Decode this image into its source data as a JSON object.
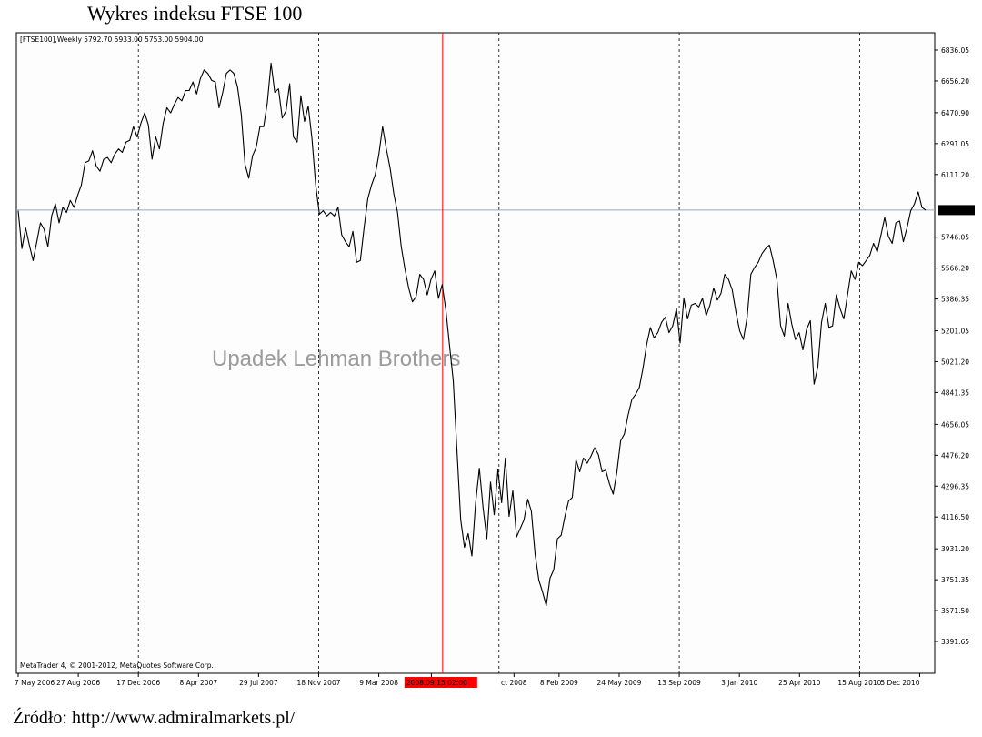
{
  "page_title": "Wykres indeksu FTSE 100",
  "source_text": "Źródło: http://www.admiralmarkets.pl/",
  "chart_data": {
    "type": "line",
    "header": "[FTSE100],Weekly  5792.70 5933.00 5753.00 5904.00",
    "copyright": "MetaTrader 4, © 2001-2012, MetaQuotes Software Corp.",
    "annotation": "Upadek Lehman Brothers",
    "highlight_label": "2008.09.15 02:00",
    "current_value_label": "5904.00",
    "current_value": 5904.0,
    "colors": {
      "line": "#000000",
      "highlight": "#ff0000",
      "current_line": "#8ea9c3",
      "label_bg": "#000000",
      "highlight_bg": "#ff0000"
    },
    "ylim": [
      3391.65,
      6836.05
    ],
    "y_ticks": [
      6836.05,
      6656.2,
      6470.9,
      6291.05,
      6111.2,
      5746.05,
      5566.2,
      5386.35,
      5201.05,
      5021.2,
      4841.35,
      4656.05,
      4476.2,
      4296.35,
      4116.5,
      3931.2,
      3751.35,
      3571.5,
      3391.65
    ],
    "y_tick_labels": [
      "6836.05",
      "6656.20",
      "6470.90",
      "6291.05",
      "6111.20",
      "5746.05",
      "5566.20",
      "5386.35",
      "5201.05",
      "5021.20",
      "4841.35",
      "4656.05",
      "4476.20",
      "4296.35",
      "4116.50",
      "3931.20",
      "3751.35",
      "3571.50",
      "3391.65"
    ],
    "x_tick_labels": [
      "7 May 2006",
      "27 Aug 2006",
      "17 Dec 2006",
      "8 Apr 2007",
      "29 Jul 2007",
      "18 Nov 2007",
      "9 Mar 2008",
      "2",
      "ct 2008",
      "8 Feb 2009",
      "24 May 2009",
      "13 Sep 2009",
      "3 Jan 2010",
      "25 Apr 2010",
      "15 Aug 2010",
      "5 Dec 2010"
    ],
    "x_tick_weeks": [
      0,
      16,
      32,
      48,
      64,
      80,
      96,
      110,
      132,
      144,
      160,
      176,
      192,
      208,
      224,
      240
    ],
    "vertical_dashed_lines_weeks": [
      32,
      80,
      128,
      176,
      224
    ],
    "highlight_week": 113,
    "total_weeks": 244,
    "series": [
      {
        "values": [
          5900,
          5680,
          5800,
          5700,
          5610,
          5720,
          5830,
          5790,
          5690,
          5870,
          5940,
          5830,
          5920,
          5890,
          5960,
          5920,
          5990,
          6050,
          6180,
          6190,
          6250,
          6160,
          6130,
          6200,
          6210,
          6180,
          6230,
          6260,
          6240,
          6300,
          6310,
          6390,
          6330,
          6410,
          6470,
          6400,
          6200,
          6330,
          6260,
          6410,
          6500,
          6470,
          6520,
          6560,
          6540,
          6600,
          6600,
          6650,
          6580,
          6670,
          6720,
          6700,
          6660,
          6650,
          6500,
          6590,
          6700,
          6720,
          6700,
          6620,
          6460,
          6170,
          6090,
          6220,
          6270,
          6390,
          6390,
          6530,
          6760,
          6590,
          6610,
          6440,
          6480,
          6640,
          6330,
          6300,
          6570,
          6420,
          6510,
          6320,
          6050,
          5880,
          5900,
          5870,
          5890,
          5870,
          5920,
          5760,
          5720,
          5690,
          5780,
          5600,
          5610,
          5800,
          5970,
          6050,
          6110,
          6230,
          6390,
          6260,
          6150,
          6000,
          5890,
          5690,
          5560,
          5450,
          5370,
          5400,
          5530,
          5500,
          5410,
          5500,
          5550,
          5390,
          5470,
          5320,
          5110,
          4910,
          4500,
          4100,
          3940,
          4020,
          3890,
          4200,
          4400,
          4170,
          3990,
          4320,
          4130,
          4390,
          4200,
          4460,
          4120,
          4270,
          4000,
          4050,
          4100,
          4220,
          4150,
          3900,
          3750,
          3680,
          3600,
          3760,
          3810,
          3990,
          4010,
          4120,
          4210,
          4230,
          4450,
          4380,
          4460,
          4430,
          4470,
          4520,
          4480,
          4380,
          4390,
          4310,
          4250,
          4380,
          4560,
          4600,
          4710,
          4800,
          4830,
          4870,
          4980,
          5120,
          5220,
          5160,
          5190,
          5250,
          5280,
          5190,
          5230,
          5330,
          5130,
          5390,
          5270,
          5350,
          5360,
          5340,
          5390,
          5290,
          5350,
          5450,
          5380,
          5420,
          5530,
          5500,
          5440,
          5310,
          5200,
          5150,
          5280,
          5530,
          5570,
          5600,
          5650,
          5680,
          5700,
          5610,
          5500,
          5230,
          5170,
          5360,
          5240,
          5150,
          5190,
          5090,
          5210,
          5260,
          4890,
          4990,
          5250,
          5360,
          5220,
          5230,
          5410,
          5330,
          5270,
          5410,
          5550,
          5500,
          5600,
          5580,
          5610,
          5640,
          5710,
          5660,
          5760,
          5860,
          5750,
          5710,
          5830,
          5840,
          5720,
          5800,
          5900,
          5940,
          6010,
          5920,
          5904
        ]
      }
    ],
    "grid": false,
    "legend": "none"
  }
}
